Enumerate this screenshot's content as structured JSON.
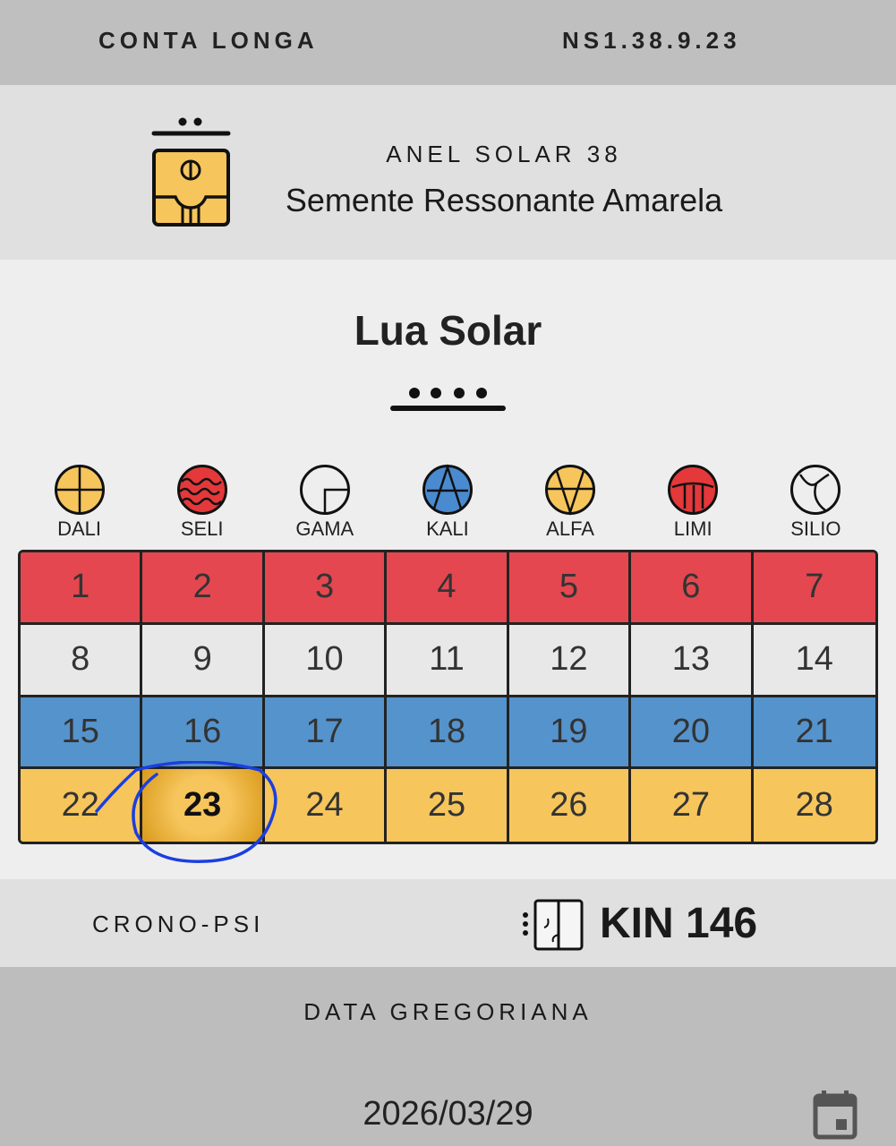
{
  "header": {
    "left": "CONTA LONGA",
    "right": "NS1.38.9.23"
  },
  "ring": {
    "label": "ANEL SOLAR 38",
    "name": "Semente Ressonante Amarela",
    "glyph_icon": "yellow-seed-glyph"
  },
  "moon": {
    "title": "Lua Solar",
    "tone_dots": 4
  },
  "plasmas": [
    {
      "name": "DALI",
      "color": "#f6c55c"
    },
    {
      "name": "SELI",
      "color": "#e4383a"
    },
    {
      "name": "GAMA",
      "color": "#eeeeee"
    },
    {
      "name": "KALI",
      "color": "#4a8ad0"
    },
    {
      "name": "ALFA",
      "color": "#f6c55c"
    },
    {
      "name": "LIMI",
      "color": "#e4383a"
    },
    {
      "name": "SILIO",
      "color": "#eeeeee"
    }
  ],
  "row_colors": [
    "#e4474f",
    "#e8e8e8",
    "#5593cc",
    "#f6c55c"
  ],
  "days": [
    [
      "1",
      "2",
      "3",
      "4",
      "5",
      "6",
      "7"
    ],
    [
      "8",
      "9",
      "10",
      "11",
      "12",
      "13",
      "14"
    ],
    [
      "15",
      "16",
      "17",
      "18",
      "19",
      "20",
      "21"
    ],
    [
      "22",
      "23",
      "24",
      "25",
      "26",
      "27",
      "28"
    ]
  ],
  "selected_day": "23",
  "crono": {
    "label": "CRONO-PSI",
    "kin": "KIN 146"
  },
  "gregorian": {
    "label": "DATA GREGORIANA",
    "date": "2026/03/29"
  }
}
